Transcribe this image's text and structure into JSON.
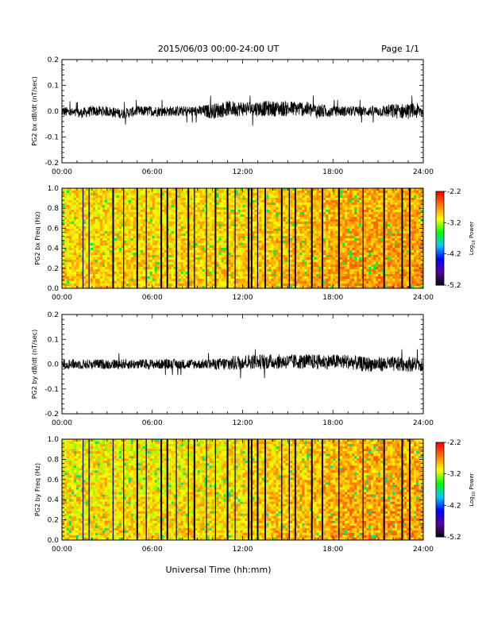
{
  "header": {
    "title": "2015/06/03  00:00-24:00 UT",
    "page": "Page 1/1"
  },
  "footer": {
    "xlabel": "Universal Time (hh:mm)"
  },
  "chart_data": [
    {
      "type": "line",
      "panel": "bx-timeseries",
      "ylabel": "PG2 bx dB/dt (nT/sec)",
      "xlim_hours": [
        0,
        24
      ],
      "ylim": [
        -0.2,
        0.2
      ],
      "yticks": [
        "0.2",
        "0.1",
        "0.0",
        "-0.1",
        "-0.2"
      ],
      "xticks": [
        "00:00",
        "06:00",
        "12:00",
        "18:00",
        "24:00"
      ],
      "x_hours": [
        0,
        1,
        2,
        3,
        4,
        5,
        6,
        7,
        8,
        9,
        10,
        11,
        12,
        13,
        14,
        15,
        16,
        17,
        18,
        19,
        20,
        21,
        22,
        23,
        24
      ],
      "y_center": [
        0.0,
        -0.01,
        0.0,
        0.0,
        -0.01,
        0.0,
        0.0,
        0.0,
        0.0,
        0.0,
        0.0,
        0.01,
        0.01,
        0.01,
        0.01,
        0.01,
        0.01,
        0.0,
        0.0,
        0.0,
        0.0,
        0.0,
        0.0,
        0.0,
        0.0
      ],
      "y_amplitude": [
        0.02,
        0.02,
        0.02,
        0.02,
        0.02,
        0.02,
        0.02,
        0.02,
        0.02,
        0.02,
        0.03,
        0.03,
        0.03,
        0.03,
        0.03,
        0.03,
        0.03,
        0.03,
        0.02,
        0.02,
        0.02,
        0.02,
        0.03,
        0.03,
        0.03
      ],
      "y_max": 0.06,
      "y_min": -0.06
    },
    {
      "type": "heatmap",
      "panel": "bx-spectrogram",
      "ylabel": "PG2 bx Freq (Hz)",
      "xlim_hours": [
        0,
        24
      ],
      "ylim": [
        0.0,
        1.0
      ],
      "yticks": [
        "1.0",
        "0.8",
        "0.6",
        "0.4",
        "0.2",
        "0.0"
      ],
      "xticks": [
        "00:00",
        "06:00",
        "12:00",
        "18:00",
        "24:00"
      ],
      "colorbar_label": "Log10 Power",
      "colorbar_ticks": [
        "-2.2",
        "-3.2",
        "-4.2",
        "-5.2"
      ],
      "colorbar_range": [
        -5.2,
        -2.2
      ],
      "colormap": [
        "#000000",
        "#5a00a0",
        "#0000ff",
        "#00c8ff",
        "#00ff00",
        "#ffff00",
        "#ff8000",
        "#ff0000"
      ],
      "typical_log_power": [
        -3.3,
        -2.6
      ],
      "gap_lines_hours": [
        1.4,
        1.8,
        3.4,
        4.1,
        5.0,
        5.6,
        6.6,
        7.0,
        7.6,
        8.4,
        8.8,
        9.6,
        10.2,
        11.0,
        11.5,
        12.4,
        12.6,
        13.0,
        13.5,
        14.6,
        15.1,
        15.5,
        16.6,
        17.3,
        18.4,
        20.0,
        21.4,
        22.6,
        23.1
      ]
    },
    {
      "type": "line",
      "panel": "by-timeseries",
      "ylabel": "PG2 by dB/dt (nT/sec)",
      "xlim_hours": [
        0,
        24
      ],
      "ylim": [
        -0.2,
        0.2
      ],
      "yticks": [
        "0.2",
        "0.1",
        "0.0",
        "-0.1",
        "-0.2"
      ],
      "xticks": [
        "00:00",
        "06:00",
        "12:00",
        "18:00",
        "24:00"
      ],
      "x_hours": [
        0,
        1,
        2,
        3,
        4,
        5,
        6,
        7,
        8,
        9,
        10,
        11,
        12,
        13,
        14,
        15,
        16,
        17,
        18,
        19,
        20,
        21,
        22,
        23,
        24
      ],
      "y_center": [
        0.0,
        0.0,
        0.0,
        0.0,
        0.0,
        0.0,
        0.0,
        0.0,
        0.0,
        0.0,
        0.0,
        0.0,
        0.01,
        0.01,
        0.01,
        0.01,
        0.01,
        0.01,
        0.01,
        0.01,
        0.0,
        0.0,
        0.0,
        0.0,
        0.0
      ],
      "y_amplitude": [
        0.02,
        0.02,
        0.02,
        0.02,
        0.02,
        0.02,
        0.02,
        0.02,
        0.02,
        0.02,
        0.02,
        0.03,
        0.03,
        0.03,
        0.03,
        0.03,
        0.03,
        0.03,
        0.03,
        0.03,
        0.03,
        0.03,
        0.03,
        0.03,
        0.03
      ],
      "y_max": 0.06,
      "y_min": -0.06
    },
    {
      "type": "heatmap",
      "panel": "by-spectrogram",
      "ylabel": "PG2 by Freq (Hz)",
      "xlim_hours": [
        0,
        24
      ],
      "ylim": [
        0.0,
        1.0
      ],
      "yticks": [
        "1.0",
        "0.8",
        "0.6",
        "0.4",
        "0.2",
        "0.0"
      ],
      "xticks": [
        "00:00",
        "06:00",
        "12:00",
        "18:00",
        "24:00"
      ],
      "colorbar_label": "Log10 Power",
      "colorbar_ticks": [
        "-2.2",
        "-3.2",
        "-4.2",
        "-5.2"
      ],
      "colorbar_range": [
        -5.2,
        -2.2
      ],
      "colormap": [
        "#000000",
        "#5a00a0",
        "#0000ff",
        "#00c8ff",
        "#00ff00",
        "#ffff00",
        "#ff8000",
        "#ff0000"
      ],
      "typical_log_power": [
        -3.4,
        -2.6
      ],
      "gap_lines_hours": [
        1.4,
        1.8,
        3.4,
        4.1,
        5.0,
        5.6,
        6.6,
        7.0,
        7.6,
        8.4,
        8.8,
        9.6,
        10.2,
        11.0,
        11.5,
        12.4,
        12.6,
        13.0,
        13.5,
        14.6,
        15.1,
        15.5,
        16.6,
        17.3,
        18.4,
        20.0,
        21.4,
        22.6,
        23.1
      ]
    }
  ]
}
